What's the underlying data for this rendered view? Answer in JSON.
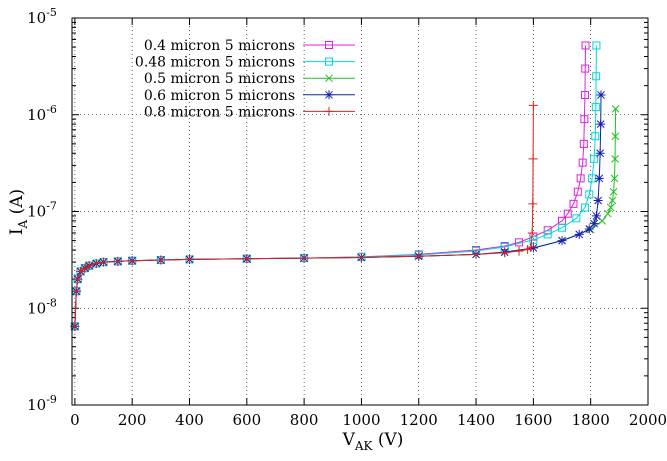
{
  "chart_data": {
    "type": "line",
    "title": "",
    "xlabel": {
      "main": "V",
      "sub": "AK",
      "unit": " (V)"
    },
    "ylabel": {
      "main": "I",
      "sub": "A",
      "unit": " (A)"
    },
    "xlim": [
      -10,
      2000
    ],
    "ylim": [
      1e-09,
      1e-05
    ],
    "yscale": "log",
    "grid": true,
    "legend_position": "top-left",
    "x_ticks": [
      0,
      200,
      400,
      600,
      800,
      1000,
      1200,
      1400,
      1600,
      1800,
      2000
    ],
    "y_ticks": [
      {
        "value": 1e-09,
        "mantissa": "10",
        "exp": "-9"
      },
      {
        "value": 1e-08,
        "mantissa": "10",
        "exp": "-8"
      },
      {
        "value": 1e-07,
        "mantissa": "10",
        "exp": "-7"
      },
      {
        "value": 1e-06,
        "mantissa": "10",
        "exp": "-6"
      },
      {
        "value": 1e-05,
        "mantissa": "10",
        "exp": "-5"
      }
    ],
    "series": [
      {
        "name": "0.4 micron 5 microns",
        "color": "#e020e0",
        "marker": "open-square",
        "x": [
          0,
          5,
          10,
          20,
          35,
          50,
          75,
          100,
          150,
          200,
          300,
          400,
          600,
          800,
          1000,
          1200,
          1400,
          1500,
          1550,
          1600,
          1650,
          1700,
          1720,
          1740,
          1755,
          1765,
          1772,
          1776,
          1778,
          1780,
          1781,
          1782
        ],
        "y": [
          6.5e-09,
          1.5e-08,
          2e-08,
          2.4e-08,
          2.6e-08,
          2.75e-08,
          2.9e-08,
          3e-08,
          3.05e-08,
          3.1e-08,
          3.15e-08,
          3.2e-08,
          3.25e-08,
          3.3e-08,
          3.4e-08,
          3.6e-08,
          4e-08,
          4.4e-08,
          4.8e-08,
          5.5e-08,
          6.4e-08,
          8e-08,
          9.5e-08,
          1.2e-07,
          1.6e-07,
          2.2e-07,
          3.2e-07,
          5e-07,
          9e-07,
          1.6e-06,
          3e-06,
          5.2e-06
        ]
      },
      {
        "name": "0.48 micron 5 microns",
        "color": "#00d8d8",
        "marker": "open-square",
        "x": [
          0,
          5,
          10,
          20,
          35,
          50,
          75,
          100,
          150,
          200,
          300,
          400,
          600,
          800,
          1000,
          1200,
          1400,
          1500,
          1600,
          1650,
          1700,
          1750,
          1780,
          1795,
          1805,
          1812,
          1816,
          1818,
          1819,
          1820
        ],
        "y": [
          6.5e-09,
          1.5e-08,
          2e-08,
          2.4e-08,
          2.6e-08,
          2.75e-08,
          2.9e-08,
          3e-08,
          3.05e-08,
          3.1e-08,
          3.15e-08,
          3.2e-08,
          3.25e-08,
          3.3e-08,
          3.4e-08,
          3.55e-08,
          3.9e-08,
          4.3e-08,
          5.1e-08,
          5.8e-08,
          6.8e-08,
          8.5e-08,
          1.1e-07,
          1.5e-07,
          2.2e-07,
          3.5e-07,
          6e-07,
          1.2e-06,
          2.5e-06,
          5.2e-06
        ]
      },
      {
        "name": "0.5 micron 5 microns",
        "color": "#22c022",
        "marker": "x",
        "x": [
          0,
          5,
          10,
          20,
          35,
          50,
          75,
          100,
          150,
          200,
          300,
          400,
          600,
          800,
          1000,
          1200,
          1400,
          1500,
          1600,
          1700,
          1800,
          1840,
          1860,
          1870,
          1876,
          1880,
          1883,
          1885,
          1886,
          1887
        ],
        "y": [
          6.5e-09,
          1.5e-08,
          2e-08,
          2.4e-08,
          2.6e-08,
          2.75e-08,
          2.9e-08,
          3e-08,
          3.05e-08,
          3.1e-08,
          3.15e-08,
          3.2e-08,
          3.25e-08,
          3.3e-08,
          3.35e-08,
          3.45e-08,
          3.6e-08,
          3.8e-08,
          4.2e-08,
          5e-08,
          6.5e-08,
          8e-08,
          9.5e-08,
          1.1e-07,
          1.3e-07,
          1.6e-07,
          2.2e-07,
          3.5e-07,
          6e-07,
          1.15e-06
        ]
      },
      {
        "name": "0.6 micron 5 microns",
        "color": "#1820b0",
        "marker": "star",
        "x": [
          0,
          5,
          10,
          20,
          35,
          50,
          75,
          100,
          150,
          200,
          300,
          400,
          600,
          800,
          1000,
          1200,
          1400,
          1500,
          1600,
          1700,
          1760,
          1795,
          1812,
          1820,
          1826,
          1830,
          1833,
          1835,
          1836
        ],
        "y": [
          6.5e-09,
          1.5e-08,
          2e-08,
          2.4e-08,
          2.6e-08,
          2.75e-08,
          2.9e-08,
          3e-08,
          3.05e-08,
          3.1e-08,
          3.15e-08,
          3.2e-08,
          3.25e-08,
          3.3e-08,
          3.35e-08,
          3.45e-08,
          3.6e-08,
          3.8e-08,
          4.2e-08,
          5e-08,
          5.8e-08,
          6.6e-08,
          7.5e-08,
          9e-08,
          1.3e-07,
          2.2e-07,
          4e-07,
          8e-07,
          1.6e-06
        ]
      },
      {
        "name": "0.8 micron 5 microns",
        "color": "#e02020",
        "marker": "plus",
        "x": [
          0,
          5,
          10,
          20,
          35,
          50,
          75,
          100,
          150,
          200,
          300,
          400,
          600,
          800,
          1000,
          1200,
          1400,
          1500,
          1550,
          1580,
          1592,
          1596,
          1598,
          1599,
          1600
        ],
        "y": [
          6.5e-09,
          1.5e-08,
          2e-08,
          2.4e-08,
          2.6e-08,
          2.75e-08,
          2.9e-08,
          3e-08,
          3.05e-08,
          3.1e-08,
          3.15e-08,
          3.2e-08,
          3.25e-08,
          3.3e-08,
          3.35e-08,
          3.45e-08,
          3.6e-08,
          3.75e-08,
          3.9e-08,
          4.05e-08,
          4.3e-08,
          6e-08,
          1.2e-07,
          3.5e-07,
          1.25e-06
        ]
      }
    ]
  }
}
